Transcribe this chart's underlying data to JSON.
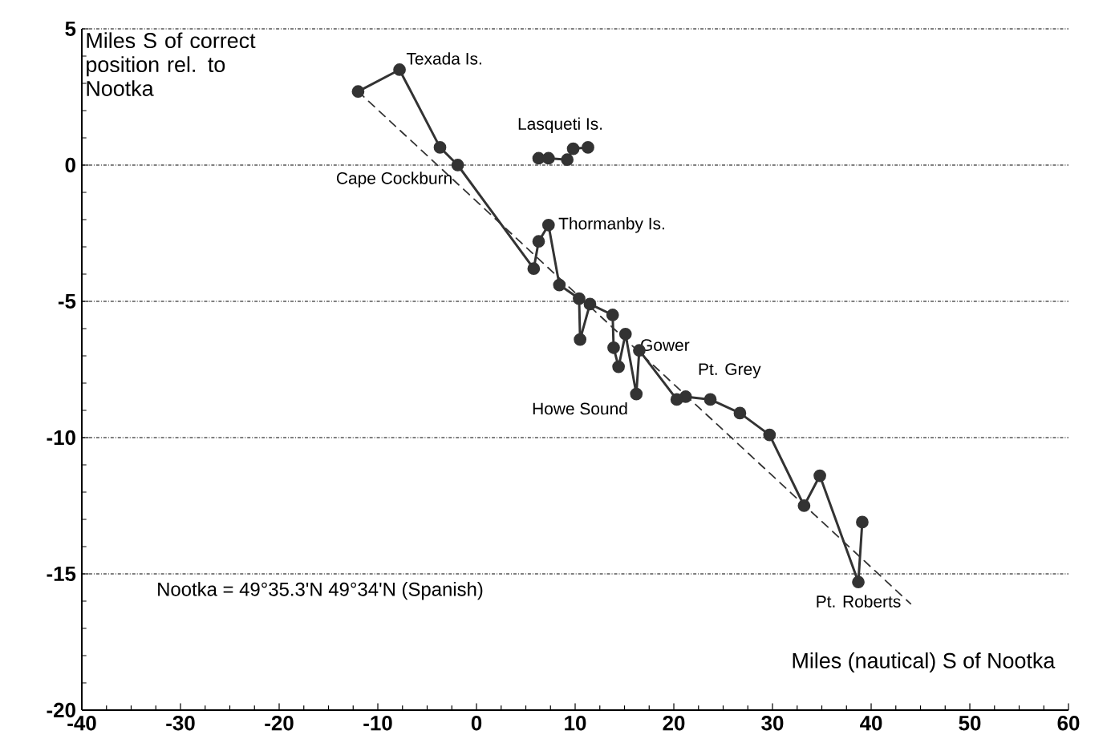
{
  "chart_data": {
    "type": "line",
    "xlabel": "Miles (nautical) S of Nootka",
    "ylabel": "Miles S of correct position rel. to Nootka",
    "xlim": [
      -40,
      60
    ],
    "ylim": [
      -20,
      5
    ],
    "xticks": [
      -40,
      -30,
      -20,
      -10,
      0,
      10,
      20,
      30,
      40,
      50,
      60
    ],
    "yticks": [
      -20,
      -15,
      -10,
      -5,
      0,
      5
    ],
    "grid": "y",
    "marker": "circle",
    "series": [
      {
        "color": "#333333",
        "x": [
          -12.0,
          -7.8,
          -3.7,
          -1.9,
          5.8,
          6.3,
          7.3,
          8.4,
          10.4,
          10.5,
          11.5,
          13.8,
          13.9,
          14.4,
          15.1,
          16.2,
          16.5,
          20.3,
          21.2,
          23.7,
          26.7,
          29.7,
          33.2,
          34.8,
          38.7,
          39.1
        ],
        "values": [
          2.7,
          3.5,
          0.65,
          0,
          -3.8,
          -2.8,
          -2.2,
          -4.4,
          -4.9,
          -6.4,
          -5.1,
          -5.5,
          -6.7,
          -7.4,
          -6.2,
          -8.4,
          -6.8,
          -8.6,
          -8.5,
          -8.6,
          -9.1,
          -9.9,
          -12.5,
          -11.4,
          -15.3,
          -13.1
        ]
      },
      {
        "color": "#333333",
        "x": [
          6.3,
          7.3,
          9.2,
          9.8,
          11.3
        ],
        "values": [
          0.25,
          0.25,
          0.2,
          0.6,
          0.65
        ]
      },
      {
        "type": "line",
        "color": "#333333",
        "line_style": "dashed",
        "marker": "none",
        "x": [
          -12.0,
          44.0
        ],
        "values": [
          2.7,
          -16.1
        ]
      }
    ],
    "annotations": [
      {
        "text": "Texada Is.",
        "x": -7.8,
        "y": 3.5
      },
      {
        "text": "Lasqueti Is.",
        "x": 8.5,
        "y": 0.4
      },
      {
        "text": "Cape Cockburn",
        "x": -1.9,
        "y": 0
      },
      {
        "text": "Thormanby Is.",
        "x": 7.3,
        "y": -2.2
      },
      {
        "text": "Gower",
        "x": 15.1,
        "y": -6.2
      },
      {
        "text": "Pt. Grey",
        "x": 20.3,
        "y": -8.6
      },
      {
        "text": "Howe Sound",
        "x": 16.2,
        "y": -8.4
      },
      {
        "text": "Pt. Roberts",
        "x": 38.7,
        "y": -15.3
      },
      "Nootka = 49°35.3'N  49°34'N (Spanish)"
    ]
  }
}
